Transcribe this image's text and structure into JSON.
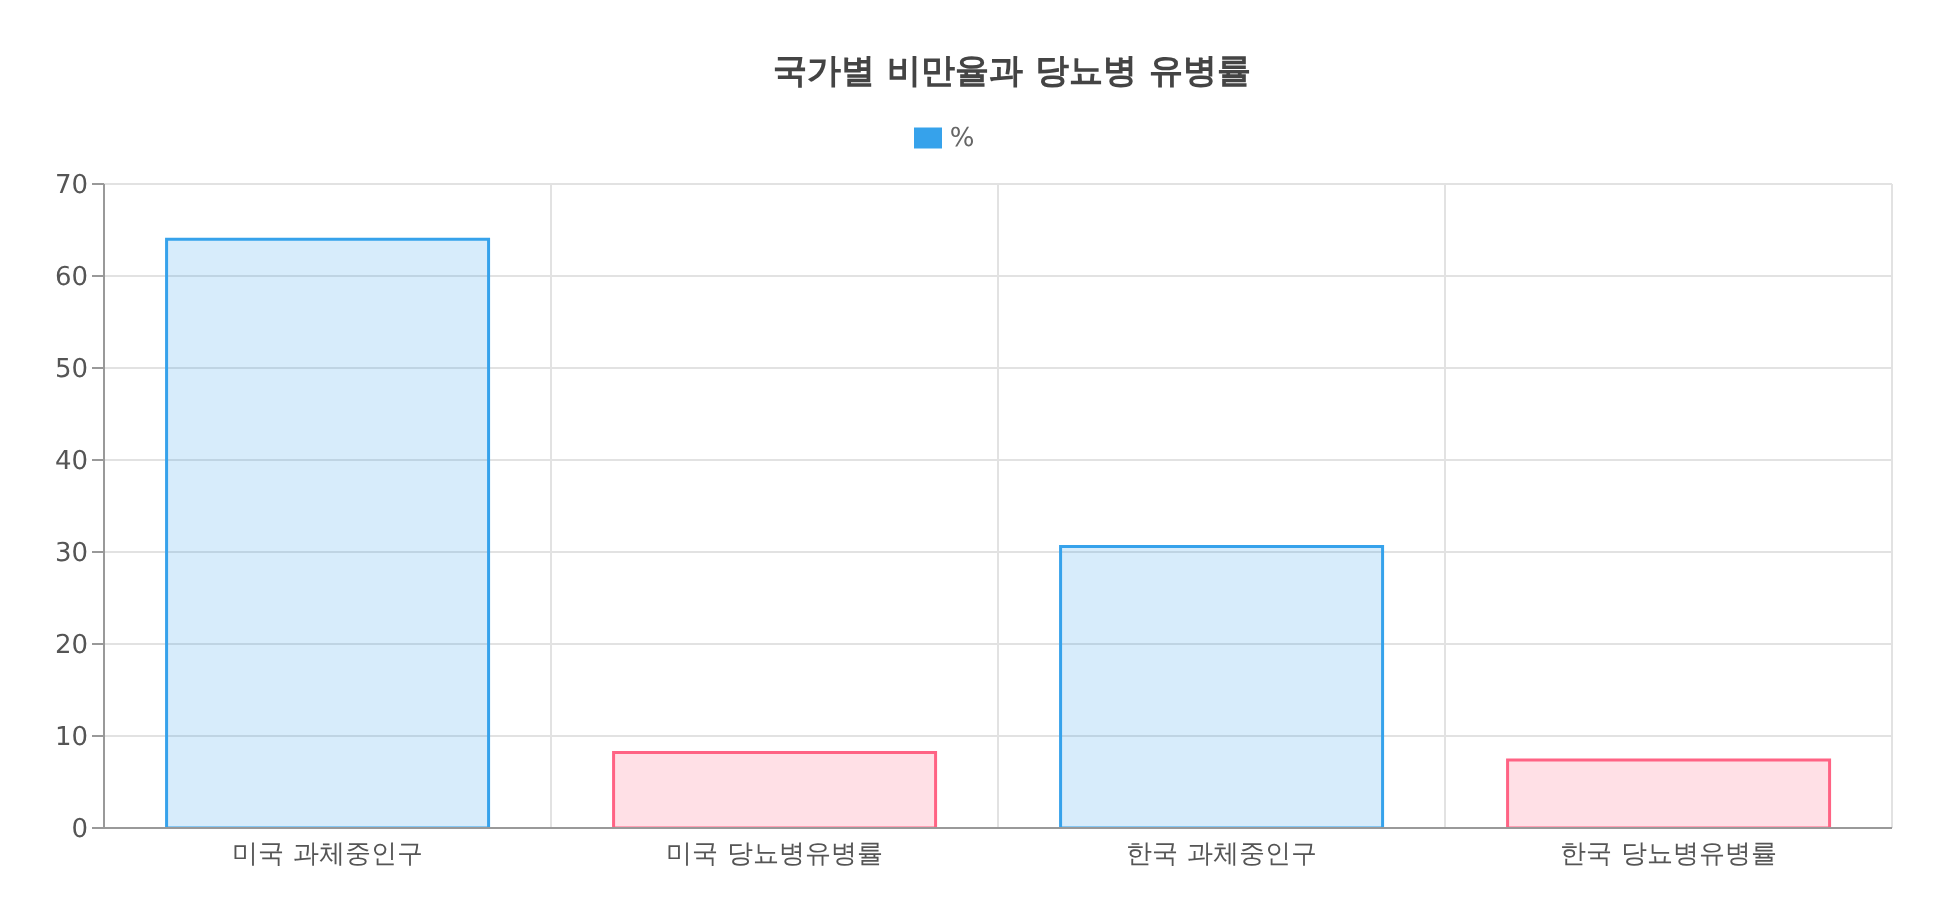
{
  "chart_data": {
    "type": "bar",
    "title": "국가별 비만율과 당뇨병 유병률",
    "categories": [
      "미국 과체중인구",
      "미국 당뇨병유병률",
      "한국 과체중인구",
      "한국 당뇨병유병률"
    ],
    "series": [
      {
        "name": "%",
        "color": "#36a2eb",
        "colors": [
          "#36a2eb",
          "#ff6384",
          "#36a2eb",
          "#ff6384"
        ],
        "values": [
          64,
          8.2,
          30.6,
          7.4
        ]
      }
    ],
    "ylim": [
      0,
      70
    ],
    "yticks": [
      0,
      10,
      20,
      30,
      40,
      50,
      60,
      70
    ],
    "grid": true,
    "legend": "top"
  }
}
